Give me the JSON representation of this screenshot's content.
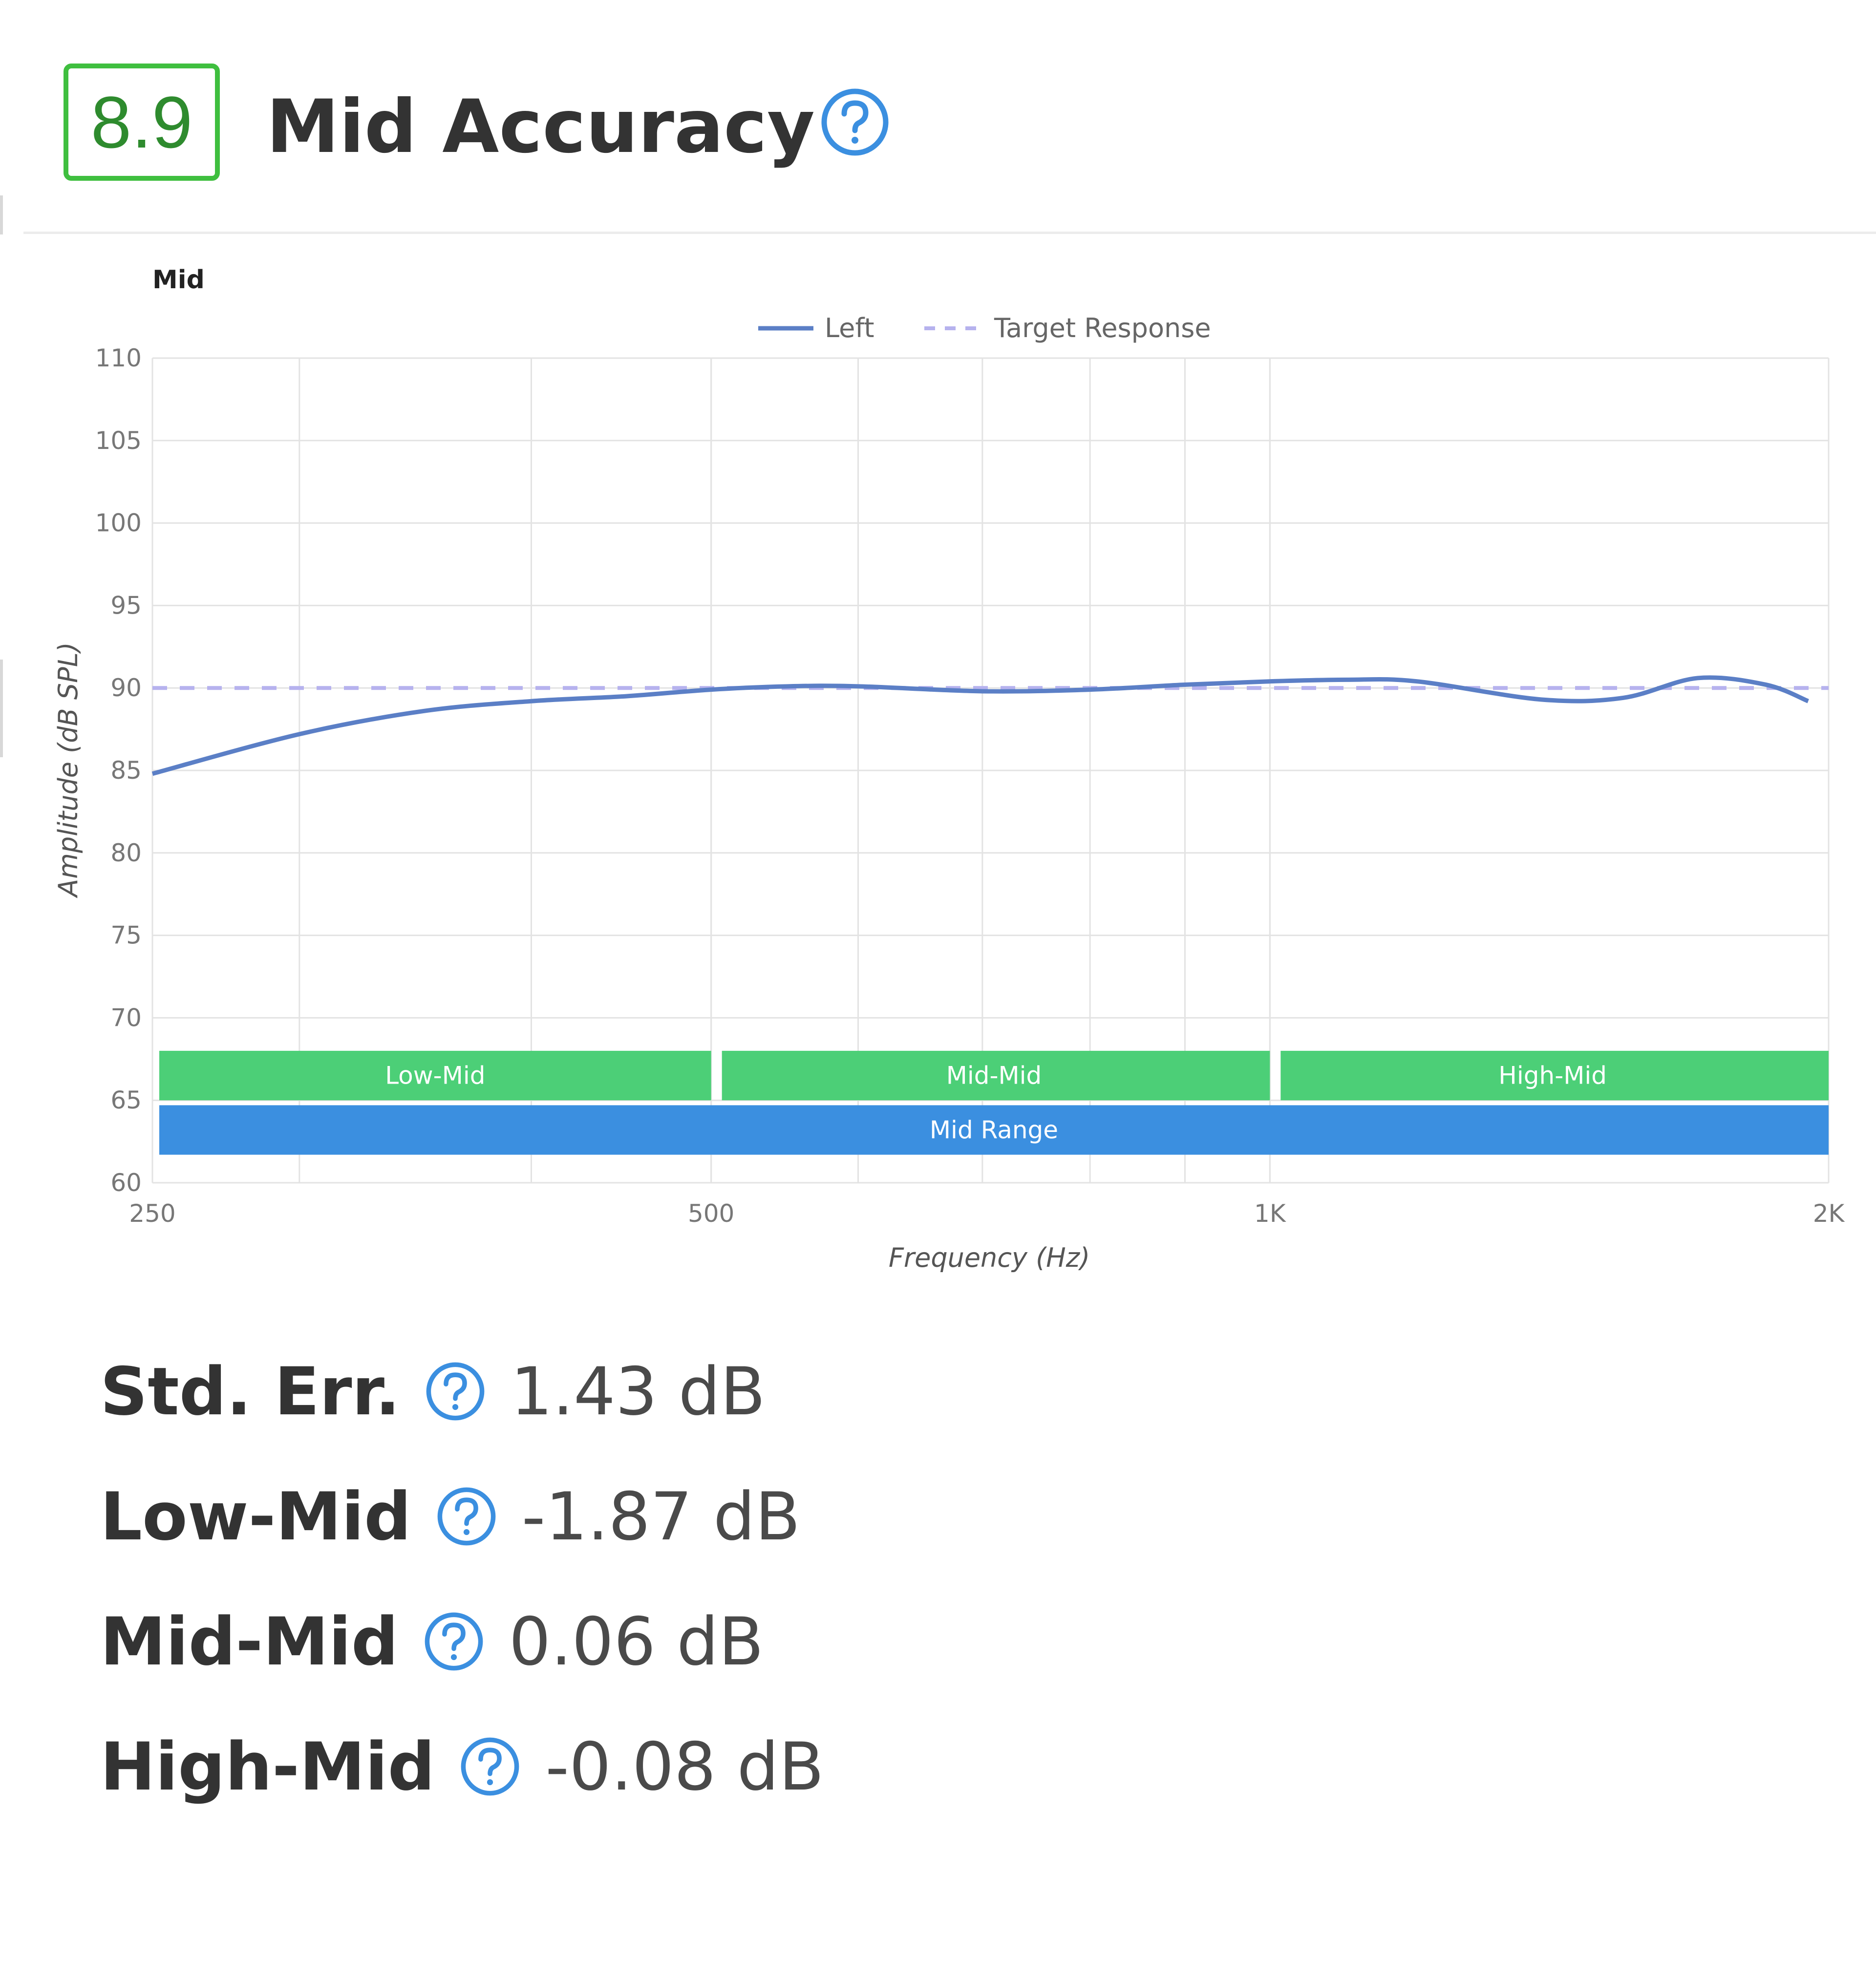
{
  "header": {
    "score": "8.9",
    "title": "Mid Accuracy"
  },
  "colors": {
    "score_border": "#3fbf3f",
    "score_text": "#2e8b2e",
    "help_icon": "#3b8fe0",
    "left_line": "#5b7fc6",
    "target_line": "#b6b2ee",
    "band_green": "#4ccf77",
    "band_blue": "#3b8fe0",
    "grid": "#e3e3e3"
  },
  "icons": {
    "help": "question-circle-icon"
  },
  "chart_data": {
    "type": "line",
    "title": "Mid",
    "xlabel": "Frequency (Hz)",
    "ylabel": "Amplitude (dB SPL)",
    "x_scale": "log",
    "xlim": [
      250,
      2000
    ],
    "ylim": [
      60,
      110
    ],
    "x_ticks": [
      250,
      500,
      1000,
      2000
    ],
    "x_tick_labels": [
      "250",
      "500",
      "1K",
      "2K"
    ],
    "y_ticks": [
      60,
      65,
      70,
      75,
      80,
      85,
      90,
      95,
      100,
      105,
      110
    ],
    "grid": true,
    "legend_position": "top-center",
    "series": [
      {
        "name": "Left",
        "style": "solid",
        "x": [
          250,
          300,
          350,
          400,
          450,
          500,
          550,
          600,
          700,
          800,
          900,
          1000,
          1100,
          1200,
          1400,
          1550,
          1700,
          1850,
          1950
        ],
        "y": [
          84.8,
          87.2,
          88.6,
          89.2,
          89.5,
          89.9,
          90.1,
          90.1,
          89.8,
          89.9,
          90.2,
          90.4,
          90.5,
          90.4,
          89.3,
          89.4,
          90.6,
          90.2,
          89.2
        ]
      },
      {
        "name": "Target Response",
        "style": "dashed",
        "x": [
          250,
          2000
        ],
        "y": [
          90,
          90
        ]
      }
    ],
    "bands": [
      {
        "label": "Low-Mid",
        "start": 250,
        "end": 500,
        "row": 1
      },
      {
        "label": "Mid-Mid",
        "start": 500,
        "end": 1000,
        "row": 1
      },
      {
        "label": "High-Mid",
        "start": 1000,
        "end": 2000,
        "row": 1
      },
      {
        "label": "Mid Range",
        "start": 250,
        "end": 2000,
        "row": 2
      }
    ]
  },
  "metrics": [
    {
      "label": "Std. Err.",
      "value": "1.43 dB"
    },
    {
      "label": "Low-Mid",
      "value": "-1.87 dB"
    },
    {
      "label": "Mid-Mid",
      "value": "0.06 dB"
    },
    {
      "label": "High-Mid",
      "value": "-0.08 dB"
    }
  ]
}
